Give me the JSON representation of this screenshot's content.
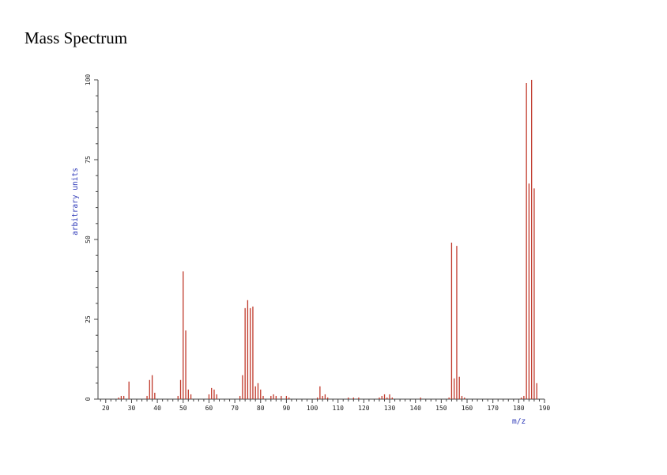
{
  "page": {
    "title": "Mass Spectrum"
  },
  "chart_data": {
    "type": "bar",
    "title": "",
    "xlabel": "m/z",
    "ylabel": "arbitrary units",
    "xlim": [
      17,
      190
    ],
    "ylim": [
      0,
      100
    ],
    "x_ticks": [
      20,
      30,
      40,
      50,
      60,
      70,
      80,
      90,
      100,
      110,
      120,
      130,
      140,
      150,
      160,
      170,
      180,
      190
    ],
    "y_ticks": [
      0,
      25,
      50,
      75,
      100
    ],
    "grid": false,
    "bar_color": "#c0392b",
    "series": [
      {
        "x": [
          25,
          26,
          27,
          29,
          36,
          37,
          38,
          39,
          48,
          49,
          50,
          51,
          52,
          53,
          60,
          61,
          62,
          63,
          72,
          73,
          74,
          75,
          76,
          77,
          78,
          79,
          80,
          81,
          84,
          85,
          86,
          88,
          90,
          91,
          102,
          103,
          104,
          105,
          106,
          114,
          116,
          118,
          126,
          127,
          128,
          129,
          130,
          131,
          142,
          153,
          154,
          155,
          156,
          157,
          158,
          159,
          181,
          182,
          183,
          184,
          185,
          186,
          187
        ],
        "y": [
          0.5,
          1,
          1,
          5.5,
          1,
          6,
          7.5,
          2,
          1,
          6,
          40,
          21.5,
          3,
          1.5,
          1.5,
          3.5,
          3,
          1.5,
          1,
          7.5,
          28.5,
          31,
          28.5,
          29,
          4,
          5,
          3,
          1,
          1,
          1.5,
          1,
          1,
          1,
          0.5,
          0.5,
          4,
          1,
          1.5,
          0.5,
          0.5,
          0.5,
          0.5,
          0.5,
          1,
          1.5,
          0.5,
          1.5,
          0.5,
          0.5,
          0.5,
          49,
          6.5,
          48,
          7,
          1,
          0.5,
          0.5,
          1,
          99,
          67.5,
          100,
          66,
          5
        ]
      }
    ]
  }
}
